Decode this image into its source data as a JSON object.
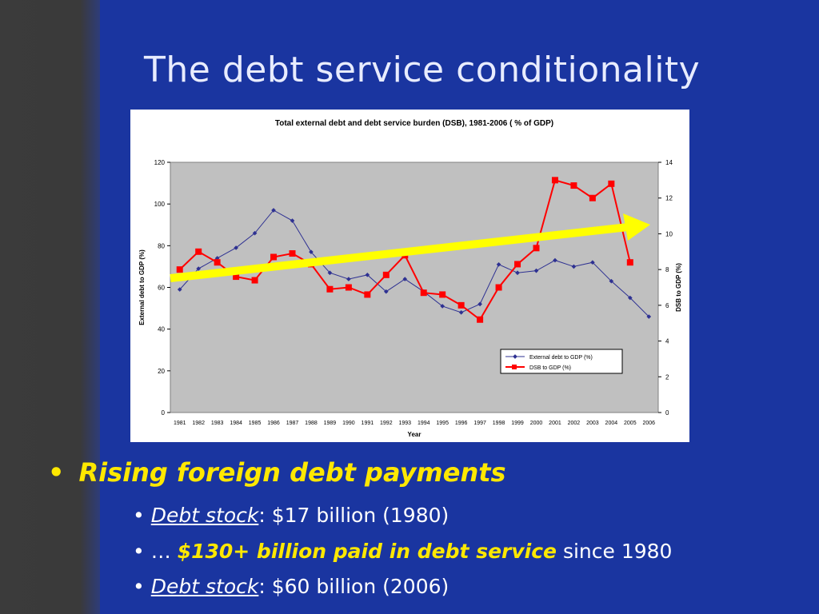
{
  "slide": {
    "title": "The debt service conditionality",
    "bullets": {
      "main": "Rising foreign debt payments",
      "sub1": {
        "term": "Debt stock",
        "rest": ": $17 billion (1980)"
      },
      "sub2": {
        "prefix": "…",
        "highlight": "$130+ billion paid in debt service",
        "suffix": "since 1980"
      },
      "sub3": {
        "term": "Debt stock",
        "rest": ": $60 billion (2006)"
      }
    }
  },
  "chart_data": {
    "type": "line",
    "title": "Total external debt and debt service burden (DSB), 1981-2006 ( % of GDP)",
    "xlabel": "Year",
    "ylabel": "External debt to GDP (%)",
    "y2label": "DSB to GDP (%)",
    "ylim": [
      0,
      120
    ],
    "y2lim": [
      0,
      14
    ],
    "yticks": [
      0,
      20,
      40,
      60,
      80,
      100,
      120
    ],
    "y2ticks": [
      0,
      2,
      4,
      6,
      8,
      10,
      12,
      14
    ],
    "categories": [
      "1981",
      "1982",
      "1983",
      "1984",
      "1985",
      "1986",
      "1987",
      "1988",
      "1989",
      "1990",
      "1991",
      "1992",
      "1993",
      "1994",
      "1995",
      "1996",
      "1997",
      "1998",
      "1999",
      "2000",
      "2001",
      "2002",
      "2003",
      "2004",
      "2005",
      "2006"
    ],
    "series": [
      {
        "name": "External debt to GDP (%)",
        "axis": "left",
        "color": "#2e3192",
        "values": [
          59,
          69,
          74,
          79,
          86,
          97,
          92,
          77,
          67,
          64,
          66,
          58,
          64,
          58,
          51,
          48,
          52,
          71,
          67,
          68,
          73,
          70,
          72,
          63,
          55,
          46
        ]
      },
      {
        "name": "DSB to GDP (%)",
        "axis": "right",
        "color": "#ff0000",
        "values": [
          8.0,
          9.0,
          8.4,
          7.6,
          7.4,
          8.7,
          8.9,
          8.3,
          6.9,
          7.0,
          6.6,
          7.7,
          8.8,
          6.7,
          6.6,
          6.0,
          5.2,
          7.0,
          8.3,
          9.2,
          13.0,
          12.7,
          12.0,
          12.8,
          8.4,
          null
        ]
      }
    ],
    "legend": "bottom-right",
    "grid": false,
    "annotation": {
      "type": "trend-arrow",
      "color": "#ffff00"
    }
  }
}
